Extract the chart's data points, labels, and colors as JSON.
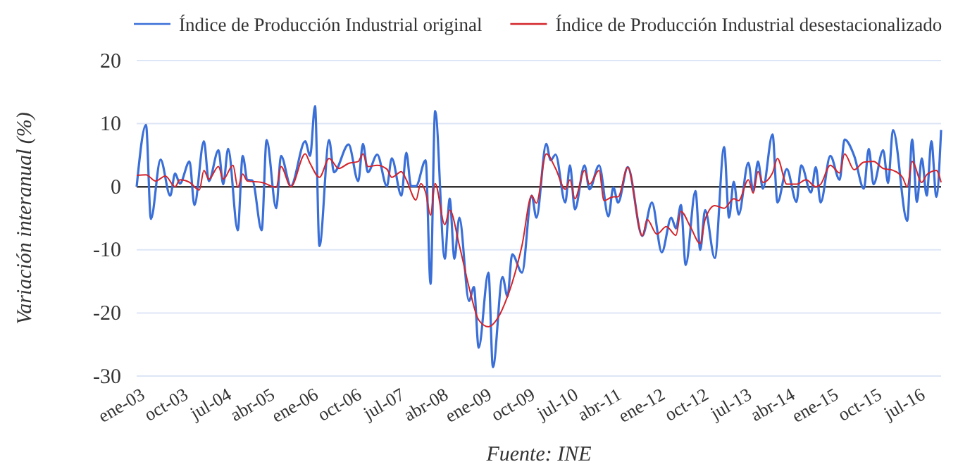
{
  "chart_data": {
    "type": "line",
    "ylabel": "Variación interanual (%)",
    "annotations": [
      "Fuente: INE"
    ],
    "legend": "top",
    "grid": "y",
    "line_style": "solid",
    "marker": "none",
    "xlim": [
      "2003-01",
      "2016-12"
    ],
    "ylim": [
      -30,
      20
    ],
    "yticks": [
      -30,
      -20,
      -10,
      0,
      10,
      20
    ],
    "xticks": [
      {
        "value": "2003-01",
        "label": "ene-03"
      },
      {
        "value": "2003-10",
        "label": "oct-03"
      },
      {
        "value": "2004-07",
        "label": "jul-04"
      },
      {
        "value": "2005-04",
        "label": "abr-05"
      },
      {
        "value": "2006-01",
        "label": "ene-06"
      },
      {
        "value": "2006-10",
        "label": "oct-06"
      },
      {
        "value": "2007-07",
        "label": "jul-07"
      },
      {
        "value": "2008-04",
        "label": "abr-08"
      },
      {
        "value": "2009-01",
        "label": "ene-09"
      },
      {
        "value": "2009-10",
        "label": "oct-09"
      },
      {
        "value": "2010-07",
        "label": "jul-10"
      },
      {
        "value": "2011-04",
        "label": "abr-11"
      },
      {
        "value": "2012-01",
        "label": "ene-12"
      },
      {
        "value": "2012-10",
        "label": "oct-12"
      },
      {
        "value": "2013-07",
        "label": "jul-13"
      },
      {
        "value": "2014-04",
        "label": "abr-14"
      },
      {
        "value": "2015-01",
        "label": "ene-15"
      },
      {
        "value": "2015-10",
        "label": "oct-15"
      },
      {
        "value": "2016-07",
        "label": "jul-16"
      }
    ],
    "ref_lines": [
      {
        "axis": "y",
        "value": 0,
        "color": "#333333"
      }
    ],
    "series": [
      {
        "name": "Índice de Producción Industrial original",
        "color": "#3a6fd8",
        "x": [
          "2003-01",
          "2003-03",
          "2003-04",
          "2003-06",
          "2003-08",
          "2003-09",
          "2003-10",
          "2003-12",
          "2004-01",
          "2004-03",
          "2004-04",
          "2004-06",
          "2004-07",
          "2004-08",
          "2004-10",
          "2004-11",
          "2004-12",
          "2005-01",
          "2005-03",
          "2005-04",
          "2005-06",
          "2005-07",
          "2005-09",
          "2005-12",
          "2006-01",
          "2006-02",
          "2006-03",
          "2006-05",
          "2006-06",
          "2006-09",
          "2006-11",
          "2006-12",
          "2007-01",
          "2007-03",
          "2007-05",
          "2007-06",
          "2007-08",
          "2007-09",
          "2007-10",
          "2007-11",
          "2008-01",
          "2008-02",
          "2008-03",
          "2008-05",
          "2008-06",
          "2008-07",
          "2008-08",
          "2008-10",
          "2008-11",
          "2008-12",
          "2009-02",
          "2009-03",
          "2009-05",
          "2009-06",
          "2009-07",
          "2009-09",
          "2009-11",
          "2009-12",
          "2010-02",
          "2010-03",
          "2010-04",
          "2010-06",
          "2010-07",
          "2010-08",
          "2010-10",
          "2010-11",
          "2011-01",
          "2011-03",
          "2011-04",
          "2011-05",
          "2011-07",
          "2011-10",
          "2011-12",
          "2012-02",
          "2012-04",
          "2012-05",
          "2012-06",
          "2012-07",
          "2012-09",
          "2012-10",
          "2012-11",
          "2013-01",
          "2013-03",
          "2013-04",
          "2013-05",
          "2013-06",
          "2013-08",
          "2013-09",
          "2013-10",
          "2013-11",
          "2014-01",
          "2014-02",
          "2014-04",
          "2014-06",
          "2014-07",
          "2014-09",
          "2014-10",
          "2014-11",
          "2015-01",
          "2015-03",
          "2015-04",
          "2015-06",
          "2015-08",
          "2015-09",
          "2015-10",
          "2015-12",
          "2016-01",
          "2016-02",
          "2016-05",
          "2016-06",
          "2016-07",
          "2016-08",
          "2016-09",
          "2016-10",
          "2016-11",
          "2016-12"
        ],
        "values": [
          0,
          9.8,
          -5.1,
          4.3,
          -1.4,
          2.1,
          0.5,
          4.0,
          -2.9,
          7.2,
          0.9,
          5.8,
          0.4,
          6.0,
          -6.9,
          4.9,
          1.1,
          1.0,
          -6.9,
          7.4,
          -3.4,
          4.9,
          0.1,
          7.2,
          4.9,
          12.8,
          -9.4,
          7.4,
          2.3,
          6.7,
          0.9,
          6.8,
          2.3,
          5.1,
          0.1,
          4.5,
          -1.4,
          5.4,
          0.1,
          0.1,
          4.2,
          -15.4,
          12.0,
          -11.4,
          -1.9,
          -11.4,
          -4.9,
          -18.1,
          -15.9,
          -25.5,
          -13.6,
          -28.6,
          -14.3,
          -17.4,
          -10.7,
          -13.6,
          -1.4,
          -4.9,
          6.8,
          4.2,
          5.1,
          -2.5,
          3.4,
          -3.6,
          3.4,
          -0.4,
          3.4,
          -4.7,
          -0.1,
          -2.5,
          3.1,
          -7.8,
          -2.5,
          -10.4,
          -4.9,
          -6.6,
          -2.9,
          -12.4,
          -0.7,
          -10.0,
          -3.7,
          -11.3,
          6.3,
          -4.9,
          0.8,
          -4.4,
          3.8,
          -0.7,
          4.0,
          -0.3,
          8.3,
          -2.5,
          2.8,
          -2.4,
          3.4,
          -0.9,
          3.1,
          -2.5,
          4.9,
          1.1,
          7.5,
          4.9,
          -0.3,
          6.0,
          0.4,
          5.8,
          0.6,
          9.0,
          -5.4,
          7.5,
          -2.4,
          4.5,
          -1.4,
          7.2,
          -1.6,
          9.0
        ]
      },
      {
        "name": "Índice de Producción Industrial desestacionalizado",
        "color": "#d4242a",
        "x": [
          "2003-01",
          "2003-03",
          "2003-05",
          "2003-07",
          "2003-09",
          "2003-10",
          "2003-12",
          "2004-02",
          "2004-03",
          "2004-04",
          "2004-06",
          "2004-07",
          "2004-09",
          "2004-10",
          "2004-11",
          "2004-12",
          "2005-03",
          "2005-06",
          "2005-07",
          "2005-09",
          "2005-12",
          "2006-01",
          "2006-03",
          "2006-05",
          "2006-07",
          "2006-09",
          "2006-11",
          "2006-12",
          "2007-01",
          "2007-03",
          "2007-05",
          "2007-06",
          "2007-08",
          "2007-09",
          "2007-11",
          "2007-12",
          "2008-01",
          "2008-02",
          "2008-03",
          "2008-05",
          "2008-06",
          "2008-08",
          "2008-10",
          "2008-12",
          "2009-02",
          "2009-04",
          "2009-06",
          "2009-07",
          "2009-09",
          "2009-11",
          "2009-12",
          "2010-02",
          "2010-04",
          "2010-06",
          "2010-07",
          "2010-08",
          "2010-10",
          "2010-11",
          "2011-01",
          "2011-02",
          "2011-04",
          "2011-05",
          "2011-07",
          "2011-10",
          "2011-11",
          "2012-01",
          "2012-03",
          "2012-05",
          "2012-06",
          "2012-08",
          "2012-10",
          "2012-11",
          "2013-01",
          "2013-03",
          "2013-05",
          "2013-06",
          "2013-08",
          "2013-09",
          "2013-10",
          "2013-11",
          "2014-01",
          "2014-02",
          "2014-04",
          "2014-06",
          "2014-08",
          "2014-10",
          "2014-11",
          "2015-01",
          "2015-03",
          "2015-04",
          "2015-06",
          "2015-08",
          "2015-10",
          "2015-12",
          "2016-02",
          "2016-04",
          "2016-05",
          "2016-06",
          "2016-08",
          "2016-09",
          "2016-11",
          "2016-12"
        ],
        "values": [
          1.8,
          1.9,
          0.9,
          1.7,
          0.0,
          1.1,
          0.7,
          -0.5,
          2.6,
          1.2,
          3.2,
          1.2,
          3.4,
          -0.1,
          2.0,
          0.9,
          0.7,
          -0.1,
          3.2,
          0.0,
          5.2,
          3.7,
          1.5,
          4.5,
          2.9,
          3.7,
          4.0,
          5.2,
          3.2,
          3.4,
          2.8,
          1.5,
          2.4,
          1.1,
          -2.1,
          0.5,
          -0.9,
          -4.5,
          0.5,
          -6.0,
          -3.7,
          -9.3,
          -15.9,
          -21.1,
          -22.2,
          -20.8,
          -17.4,
          -15.2,
          -9.3,
          -1.4,
          -2.6,
          5.2,
          2.9,
          -0.4,
          1.1,
          -1.9,
          2.6,
          0.4,
          2.6,
          -2.2,
          -1.6,
          -1.6,
          3.1,
          -7.8,
          -5.2,
          -7.5,
          -6.3,
          -7.7,
          -3.9,
          -6.4,
          -9.0,
          -5.2,
          -3.0,
          -3.4,
          -1.9,
          -2.2,
          1.1,
          -1.0,
          2.4,
          0.7,
          2.2,
          4.5,
          0.4,
          0.4,
          1.1,
          0.0,
          0.4,
          3.4,
          2.2,
          5.2,
          2.7,
          3.9,
          4.0,
          2.9,
          2.6,
          1.5,
          0.0,
          4.0,
          0.7,
          1.9,
          2.6,
          0.7
        ]
      }
    ]
  }
}
